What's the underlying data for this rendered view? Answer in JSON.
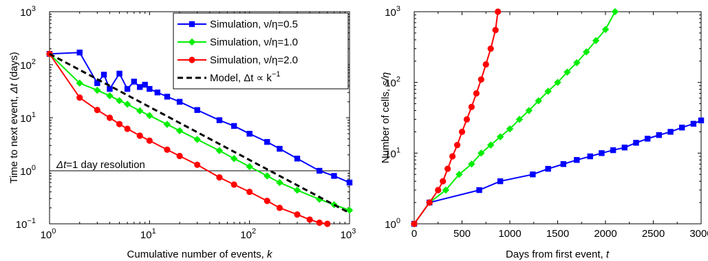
{
  "chart_data": [
    {
      "type": "line",
      "xscale": "log",
      "yscale": "log",
      "xlim": [
        1,
        1000
      ],
      "ylim": [
        0.1,
        1000
      ],
      "xlabel": "Cumulative number of events,",
      "xlabel_var": "k",
      "ylabel": "Time to next event,",
      "ylabel_var": "Δt",
      "ylabel_unit": "(days)",
      "xticks": [
        {
          "value": 1,
          "base": "10",
          "exp": "0"
        },
        {
          "value": 10,
          "base": "10",
          "exp": "1"
        },
        {
          "value": 100,
          "base": "10",
          "exp": "2"
        },
        {
          "value": 1000,
          "base": "10",
          "exp": "3"
        }
      ],
      "yticks": [
        {
          "value": 0.1,
          "base": "10",
          "exp": "−1"
        },
        {
          "value": 1,
          "base": "10",
          "exp": "0"
        },
        {
          "value": 10,
          "base": "10",
          "exp": "1"
        },
        {
          "value": 100,
          "base": "10",
          "exp": "2"
        },
        {
          "value": 1000,
          "base": "10",
          "exp": "3"
        }
      ],
      "reference_line": {
        "y": 1,
        "label_var": "Δt",
        "label_eq": "=1",
        "label_rest": " day resolution"
      },
      "legend": {
        "position": "top-right"
      },
      "series": [
        {
          "name": "Simulation, ν/η=0.5",
          "color": "#0000ff",
          "marker": "square",
          "x": [
            1,
            2,
            3,
            3.5,
            4,
            5,
            6,
            7,
            8,
            9,
            10,
            12,
            15,
            20,
            30,
            50,
            70,
            100,
            150,
            200,
            300,
            500,
            700,
            1000
          ],
          "y": [
            160,
            170,
            45,
            65,
            35,
            68,
            35,
            48,
            38,
            42,
            35,
            30,
            25,
            20,
            14,
            9,
            7,
            5,
            3.5,
            2.6,
            1.7,
            1.0,
            0.8,
            0.6
          ]
        },
        {
          "name": "Simulation, ν/η=1.0",
          "color": "#00ee00",
          "marker": "diamond",
          "x": [
            1,
            2,
            3,
            4,
            5,
            6,
            8,
            10,
            15,
            20,
            30,
            50,
            70,
            100,
            150,
            200,
            300,
            500,
            700,
            1000
          ],
          "y": [
            160,
            45,
            33,
            26,
            21,
            18,
            13.5,
            11,
            7.5,
            5.7,
            3.9,
            2.4,
            1.7,
            1.2,
            0.8,
            0.6,
            0.43,
            0.29,
            0.23,
            0.18
          ]
        },
        {
          "name": "Simulation, ν/η=2.0",
          "color": "#ff0000",
          "marker": "circle",
          "x": [
            1,
            2,
            3,
            4,
            5,
            6,
            8,
            10,
            15,
            20,
            30,
            50,
            70,
            100,
            150,
            200,
            300,
            400,
            500,
            600
          ],
          "y": [
            160,
            24,
            14,
            10,
            7.6,
            6.2,
            4.6,
            3.7,
            2.5,
            1.9,
            1.3,
            0.75,
            0.55,
            0.4,
            0.27,
            0.2,
            0.15,
            0.12,
            0.105,
            0.1
          ]
        },
        {
          "name": "Model, Δt ∝ k",
          "name_exp": "−1",
          "color": "#000000",
          "style": "dashed",
          "x": [
            1,
            1000
          ],
          "y": [
            160,
            0.16
          ]
        }
      ]
    },
    {
      "type": "line",
      "xscale": "linear",
      "yscale": "log",
      "xlim": [
        0,
        3000
      ],
      "ylim": [
        1,
        1000
      ],
      "xlabel": "Days from first event,",
      "xlabel_var": "t",
      "ylabel": "Number of cells,",
      "ylabel_var": "s/η",
      "xticks": [
        {
          "value": 0,
          "label": "0"
        },
        {
          "value": 500,
          "label": "500"
        },
        {
          "value": 1000,
          "label": "1000"
        },
        {
          "value": 1500,
          "label": "1500"
        },
        {
          "value": 2000,
          "label": "2000"
        },
        {
          "value": 2500,
          "label": "2500"
        },
        {
          "value": 3000,
          "label": "3000"
        }
      ],
      "yticks": [
        {
          "value": 1,
          "base": "10",
          "exp": "0"
        },
        {
          "value": 10,
          "base": "10",
          "exp": "1"
        },
        {
          "value": 100,
          "base": "10",
          "exp": "2"
        },
        {
          "value": 1000,
          "base": "10",
          "exp": "3"
        }
      ],
      "series": [
        {
          "color": "#0000ff",
          "marker": "square",
          "x": [
            0,
            160,
            680,
            900,
            1240,
            1400,
            1560,
            1700,
            1840,
            1960,
            2080,
            2200,
            2320,
            2440,
            2560,
            2680,
            2800,
            2920,
            3000
          ],
          "y": [
            1,
            2,
            3,
            4,
            5,
            6,
            7,
            8,
            9,
            10,
            11,
            12,
            14,
            16,
            18,
            20,
            23,
            26,
            29
          ]
        },
        {
          "color": "#00ee00",
          "marker": "diamond",
          "x": [
            0,
            160,
            330,
            470,
            600,
            700,
            800,
            900,
            1000,
            1100,
            1200,
            1300,
            1400,
            1500,
            1600,
            1700,
            1800,
            1900,
            2000,
            2100
          ],
          "y": [
            1,
            2,
            3,
            5,
            7,
            10,
            13,
            17,
            22,
            30,
            40,
            55,
            75,
            100,
            140,
            190,
            270,
            390,
            560,
            1000
          ]
        },
        {
          "color": "#ff0000",
          "marker": "circle",
          "x": [
            0,
            160,
            250,
            300,
            350,
            400,
            450,
            500,
            550,
            600,
            650,
            700,
            750,
            800,
            850,
            875
          ],
          "y": [
            1,
            2,
            3,
            4,
            6,
            9,
            13,
            20,
            30,
            45,
            70,
            110,
            180,
            300,
            550,
            1000
          ]
        }
      ]
    }
  ]
}
